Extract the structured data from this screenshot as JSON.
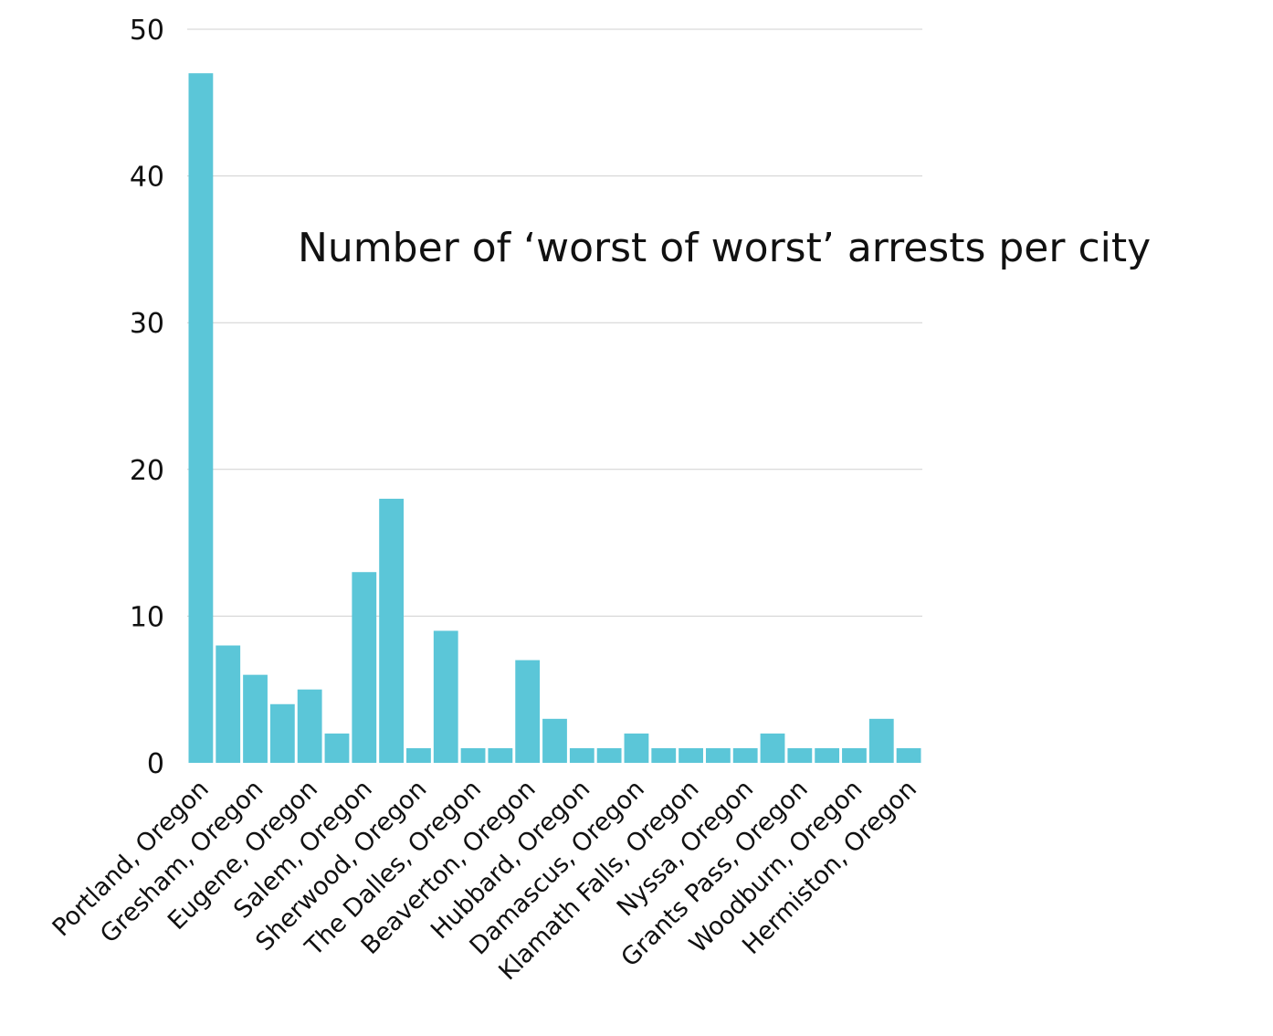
{
  "chart_data": {
    "type": "bar",
    "title": "Number of ‘worst of worst’ arrests per city",
    "xlabel": "",
    "ylabel": "",
    "ylim": [
      0,
      50
    ],
    "yticks": [
      0,
      10,
      20,
      30,
      40,
      50
    ],
    "grid": true,
    "bar_color": "#5bc6d8",
    "grid_color": "#d0d0d0",
    "categories": [
      "Portland, Oregon",
      "",
      "Gresham, Oregon",
      "",
      "Eugene, Oregon",
      "",
      "Salem, Oregon",
      "",
      "Sherwood, Oregon",
      "",
      "The Dalles, Oregon",
      "",
      "Beaverton, Oregon",
      "",
      "Hubbard, Oregon",
      "",
      "Damascus, Oregon",
      "",
      "Klamath Falls, Oregon",
      "",
      "Nyssa, Oregon",
      "",
      "Grants Pass, Oregon",
      "",
      "Woodburn, Oregon",
      "",
      "Hermiston, Oregon"
    ],
    "values": [
      47,
      8,
      6,
      4,
      5,
      2,
      13,
      18,
      1,
      9,
      1,
      1,
      7,
      3,
      1,
      1,
      2,
      1,
      1,
      1,
      1,
      2,
      1,
      1,
      1,
      3,
      1
    ]
  }
}
